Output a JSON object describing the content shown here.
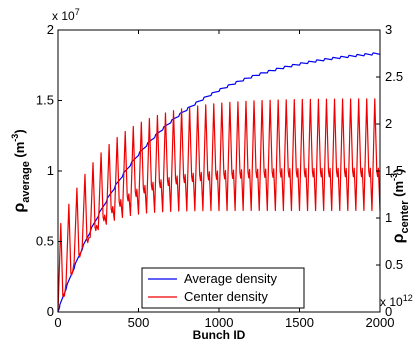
{
  "chart_data": {
    "type": "line",
    "xlabel": "Bunch ID",
    "ylabel_left": {
      "symbol": "ρ",
      "subscript": "average",
      "unit": " (m",
      "exponent": "-3",
      "close": ")"
    },
    "ylabel_right": {
      "symbol": "ρ",
      "subscript": "center",
      "unit": " (m",
      "exponent": "-3",
      "close": ")"
    },
    "xlim": [
      0,
      2000
    ],
    "ylim_left": [
      0,
      20000000
    ],
    "ylim_right": [
      0,
      3000000000000
    ],
    "x_ticks": [
      "0",
      "500",
      "1000",
      "1500",
      "2000"
    ],
    "y_left_ticks": [
      "0",
      "0.5",
      "1",
      "1.5",
      "2"
    ],
    "y_right_ticks": [
      "0",
      "0.5",
      "1",
      "1.5",
      "2",
      "2.5",
      "3"
    ],
    "y_left_multiplier": {
      "base": "x 10",
      "exp": "7"
    },
    "y_right_multiplier": {
      "base": "x 10",
      "exp": "12"
    },
    "legend": {
      "position": "bottom-center",
      "entries": [
        "Average density",
        "Center density"
      ]
    },
    "series": [
      {
        "name": "Average density",
        "axis": "left",
        "color": "#0000ee",
        "model": "saturating",
        "amplitude": 18800000,
        "tau": 560,
        "ripple_amplitude": 150000,
        "period": 50,
        "x_start": 0,
        "x_end": 2000
      },
      {
        "name": "Center density",
        "axis": "right",
        "color": "#ee0000",
        "model": "sawtooth",
        "period": 50,
        "x_start": 0,
        "x_end": 2000,
        "peak_final": 2270000000000,
        "peak_tau": 300,
        "trough_final": 1080000000000,
        "trough_tau": 150,
        "secondary_final": 1500000000000,
        "secondary_tau": 250
      }
    ]
  }
}
